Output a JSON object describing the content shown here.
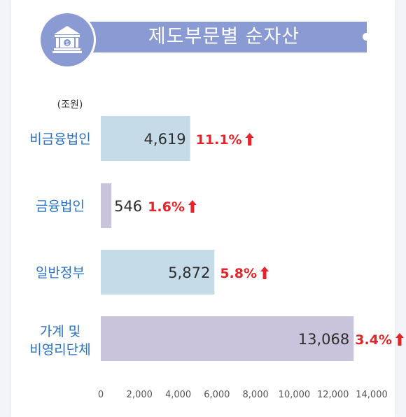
{
  "header": {
    "title": "제도부문별 순자산",
    "icon": "bank-building-icon"
  },
  "colors": {
    "banner": "#8a9bd4",
    "bar_blue": "#c5dce8",
    "bar_purple": "#c9c4dc",
    "category_label": "#2a72c2",
    "percent": "#e5242a",
    "value_text": "#2d2d2d",
    "axis_text": "#555555"
  },
  "chart_data": {
    "type": "bar",
    "orientation": "horizontal",
    "unit_label": "(조원)",
    "categories": [
      [
        "비금융법인"
      ],
      [
        "금융법인"
      ],
      [
        "일반정부"
      ],
      [
        "가계 및",
        "비영리단체"
      ]
    ],
    "values": [
      4619,
      546,
      5872,
      13068
    ],
    "value_labels": [
      "4,619",
      "546",
      "5,872",
      "13,068"
    ],
    "percent_labels": [
      "11.1%",
      "1.6%",
      "5.8%",
      "3.4%"
    ],
    "trend": [
      "up",
      "up",
      "up",
      "up"
    ],
    "xlim": [
      0,
      14000
    ],
    "xticks": [
      0,
      2000,
      4000,
      6000,
      8000,
      10000,
      12000,
      14000
    ],
    "xtick_labels": [
      "0",
      "2,000",
      "4,000",
      "6,000",
      "8,000",
      "10,000",
      "12,000",
      "14,000"
    ],
    "bar_colors": [
      "#c5dce8",
      "#c9c4dc",
      "#c5dce8",
      "#c9c4dc"
    ],
    "grid": false,
    "legend": "none"
  }
}
